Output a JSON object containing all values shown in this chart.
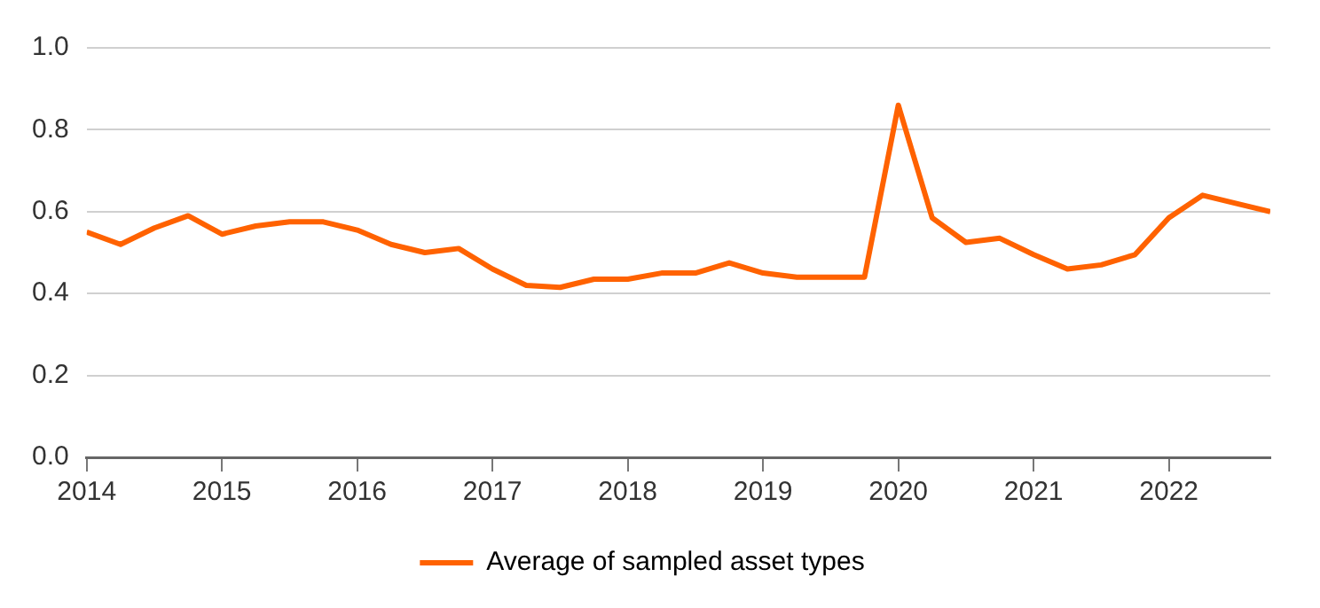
{
  "chart_data": {
    "type": "line",
    "x": [
      2014,
      2014.25,
      2014.5,
      2014.75,
      2015,
      2015.25,
      2015.5,
      2015.75,
      2016,
      2016.25,
      2016.5,
      2016.75,
      2017,
      2017.25,
      2017.5,
      2017.75,
      2018,
      2018.25,
      2018.5,
      2018.75,
      2019,
      2019.25,
      2019.5,
      2019.75,
      2020,
      2020.25,
      2020.5,
      2020.75,
      2021,
      2021.25,
      2021.5,
      2021.75,
      2022,
      2022.25,
      2022.5,
      2022.75
    ],
    "series": [
      {
        "name": "Average of sampled asset types",
        "color": "#ff6200",
        "values": [
          0.55,
          0.52,
          0.56,
          0.59,
          0.545,
          0.565,
          0.575,
          0.575,
          0.555,
          0.52,
          0.5,
          0.51,
          0.46,
          0.42,
          0.415,
          0.435,
          0.435,
          0.45,
          0.45,
          0.475,
          0.45,
          0.44,
          0.44,
          0.44,
          0.86,
          0.585,
          0.525,
          0.535,
          0.495,
          0.46,
          0.47,
          0.495,
          0.585,
          0.64,
          0.62,
          0.6
        ]
      }
    ],
    "xlim": [
      2014,
      2022.75
    ],
    "xticks": [
      2014,
      2015,
      2016,
      2017,
      2018,
      2019,
      2020,
      2021,
      2022
    ],
    "ylim": [
      0,
      1
    ],
    "yticks": [
      {
        "value": 0,
        "label": "0.0"
      },
      0.2,
      0.4,
      0.6,
      0.8,
      {
        "value": 1,
        "label": "1.0"
      }
    ],
    "grid": "y",
    "legend": "bottom",
    "marker": "none",
    "line_style": "solid"
  }
}
